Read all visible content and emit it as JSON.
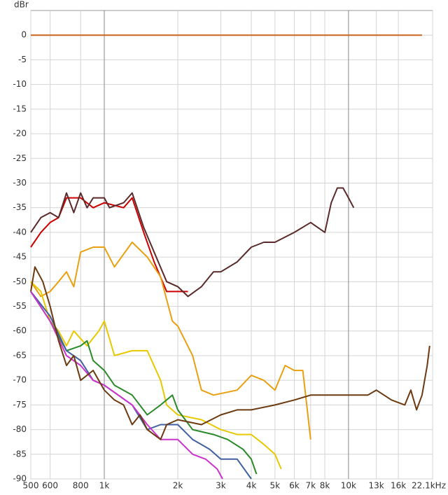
{
  "chart_data": {
    "type": "line",
    "y_label": "dBr",
    "x_log": true,
    "grid": true,
    "xlim": [
      500,
      22100
    ],
    "ylim": [
      -90,
      5
    ],
    "xticks": [
      500,
      600,
      800,
      {
        "value": 1000,
        "label": "1k"
      },
      {
        "value": 2000,
        "label": "2k"
      },
      {
        "value": 3000,
        "label": "3k"
      },
      {
        "value": 4000,
        "label": "4k"
      },
      {
        "value": 5000,
        "label": "5k"
      },
      {
        "value": 6000,
        "label": "6k"
      },
      {
        "value": 7000,
        "label": "7k"
      },
      {
        "value": 8000,
        "label": "8k"
      },
      {
        "value": 10000,
        "label": "10k"
      },
      {
        "value": 13000,
        "label": "13k"
      },
      {
        "value": 16000,
        "label": "16k"
      },
      {
        "value": 22100,
        "label": "22.1kHz"
      }
    ],
    "yticks": [
      0,
      -5,
      -10,
      -15,
      -20,
      -25,
      -30,
      -35,
      -40,
      -45,
      -50,
      -55,
      -60,
      -65,
      -70,
      -75,
      -80,
      -85,
      -90
    ],
    "series": [
      {
        "color": "#c8641e",
        "x": [
          500,
          20000
        ],
        "values": [
          0,
          0
        ]
      },
      {
        "color": "#cc0000",
        "x": [
          500,
          550,
          600,
          650,
          700,
          800,
          900,
          1000,
          1200,
          1300,
          1450,
          1600,
          1800,
          2000,
          2200
        ],
        "values": [
          -43,
          -40,
          -38,
          -37,
          -33,
          -33,
          -35,
          -34,
          -35,
          -33,
          -40,
          -46,
          -52,
          -52,
          -52
        ]
      },
      {
        "color": "#5a2a2a",
        "x": [
          500,
          550,
          600,
          650,
          700,
          750,
          800,
          850,
          900,
          1000,
          1050,
          1200,
          1300,
          1450,
          1600,
          1800,
          2000,
          2200,
          2500,
          2800,
          3000,
          3500,
          4000,
          4500,
          5000,
          6000,
          7000,
          8000,
          8500,
          9000,
          9500,
          10000,
          10500
        ],
        "values": [
          -40,
          -37,
          -36,
          -37,
          -32,
          -36,
          -32,
          -35,
          -33,
          -33,
          -35,
          -34,
          -32,
          -39,
          -44,
          -50,
          -51,
          -53,
          -51,
          -48,
          -48,
          -46,
          -43,
          -42,
          -42,
          -40,
          -38,
          -40,
          -34,
          -31,
          -31,
          -33,
          -35
        ]
      },
      {
        "color": "#e8a010",
        "x": [
          500,
          550,
          600,
          650,
          700,
          750,
          800,
          900,
          1000,
          1100,
          1300,
          1500,
          1700,
          1900,
          2000,
          2300,
          2500,
          2800,
          3500,
          4000,
          4500,
          5000,
          5500,
          6000,
          6500,
          7000
        ],
        "values": [
          -50,
          -53,
          -52,
          -50,
          -48,
          -51,
          -44,
          -43,
          -43,
          -47,
          -42,
          -45,
          -49,
          -58,
          -59,
          -65,
          -72,
          -73,
          -72,
          -69,
          -70,
          -72,
          -67,
          -68,
          -68,
          -82
        ]
      },
      {
        "color": "#e8c800",
        "x": [
          500,
          550,
          600,
          650,
          700,
          750,
          850,
          950,
          1000,
          1100,
          1300,
          1500,
          1700,
          1800,
          2000,
          2500,
          3000,
          3500,
          4000,
          4500,
          5000,
          5300
        ],
        "values": [
          -50,
          -52,
          -58,
          -60,
          -63,
          -60,
          -63,
          -60,
          -58,
          -65,
          -64,
          -64,
          -70,
          -75,
          -77,
          -78,
          -80,
          -81,
          -81,
          -83,
          -85,
          -88
        ]
      },
      {
        "color": "#2a8a2a",
        "x": [
          500,
          600,
          700,
          800,
          850,
          900,
          1000,
          1100,
          1300,
          1500,
          1700,
          1900,
          2000,
          2300,
          2800,
          3200,
          3700,
          4000,
          4200
        ],
        "values": [
          -52,
          -58,
          -64,
          -63,
          -62,
          -66,
          -68,
          -71,
          -73,
          -77,
          -75,
          -73,
          -76,
          -80,
          -81,
          -82,
          -84,
          -86,
          -89
        ]
      },
      {
        "color": "#4060a0",
        "x": [
          500,
          600,
          700,
          800,
          900,
          1000,
          1300,
          1500,
          1700,
          2000,
          2300,
          2700,
          3000,
          3500,
          4000
        ],
        "values": [
          -52,
          -57,
          -64,
          -66,
          -70,
          -71,
          -75,
          -80,
          -79,
          -79,
          -82,
          -84,
          -86,
          -86,
          -90
        ]
      },
      {
        "color": "#cc33cc",
        "x": [
          500,
          600,
          700,
          800,
          900,
          1000,
          1300,
          1500,
          1700,
          2000,
          2300,
          2600,
          2900,
          3050
        ],
        "values": [
          -52,
          -58,
          -65,
          -67,
          -70,
          -71,
          -75,
          -79,
          -82,
          -82,
          -85,
          -86,
          -88,
          -90
        ]
      },
      {
        "color": "#6b3a10",
        "x": [
          500,
          520,
          560,
          600,
          650,
          700,
          750,
          800,
          900,
          1000,
          1100,
          1200,
          1300,
          1400,
          1500,
          1700,
          1800,
          2000,
          2500,
          3000,
          3500,
          4000,
          5000,
          6000,
          7000,
          8000,
          10000,
          12000,
          13000,
          15000,
          17000,
          18000,
          19000,
          20000,
          21000,
          21500
        ],
        "values": [
          -52,
          -47,
          -50,
          -55,
          -62,
          -67,
          -65,
          -70,
          -68,
          -72,
          -74,
          -75,
          -79,
          -77,
          -80,
          -82,
          -79,
          -78,
          -79,
          -77,
          -76,
          -76,
          -75,
          -74,
          -73,
          -73,
          -73,
          -73,
          -72,
          -74,
          -75,
          -72,
          -76,
          -73,
          -67,
          -63
        ]
      }
    ]
  }
}
